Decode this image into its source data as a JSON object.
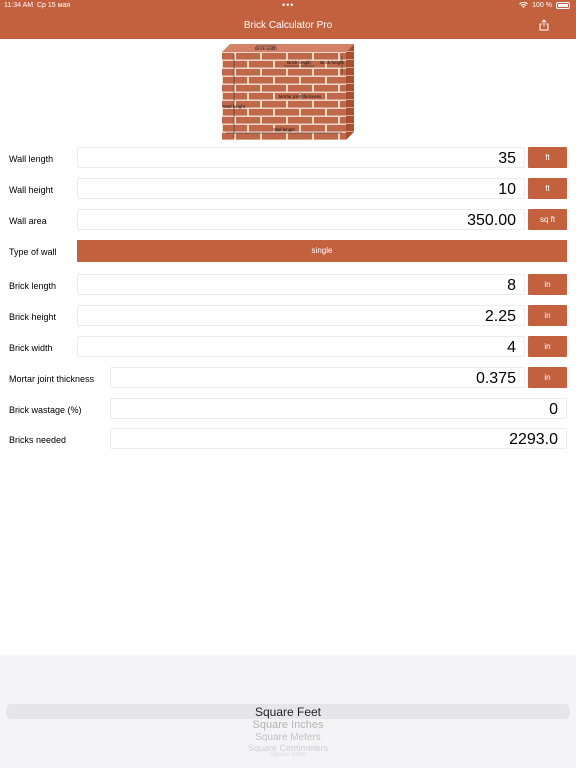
{
  "status_bar": {
    "time": "11:34 AM",
    "date": "Ср 15 мая",
    "battery": "100 %"
  },
  "nav": {
    "title": "Brick Calculator Pro",
    "share_icon": "share-icon"
  },
  "diagram": {
    "labels": {
      "brick_width": "Brick width",
      "brick_length": "Brick length",
      "brick_height": "Brick height",
      "wall_height": "Wall height",
      "wall_length": "Wall length",
      "mortar": "Mortar joint thickness"
    }
  },
  "fields": {
    "wall_length": {
      "label": "Wall length",
      "value": "35",
      "unit": "ft"
    },
    "wall_height": {
      "label": "Wall height",
      "value": "10",
      "unit": "ft"
    },
    "wall_area": {
      "label": "Wall area",
      "value": "350.00",
      "unit": "sq ft"
    },
    "type_of_wall": {
      "label": "Type of wall",
      "value": "single"
    },
    "brick_length": {
      "label": "Brick length",
      "value": "8",
      "unit": "in"
    },
    "brick_height": {
      "label": "Brick height",
      "value": "2.25",
      "unit": "in"
    },
    "brick_width": {
      "label": "Brick width",
      "value": "4",
      "unit": "in"
    },
    "mortar": {
      "label": "Mortar joint thickness",
      "value": "0.375",
      "unit": "in"
    },
    "wastage": {
      "label": "Brick wastage (%)",
      "value": "0"
    },
    "bricks_needed": {
      "label": "Bricks needed",
      "value": "2293.0"
    }
  },
  "picker": {
    "selected": "Square Feet",
    "options": [
      "Square Inches",
      "Square Meters",
      "Square Centimeters",
      "Square Yards"
    ]
  },
  "colors": {
    "accent": "#c3613f",
    "brick": "#c0694a"
  }
}
